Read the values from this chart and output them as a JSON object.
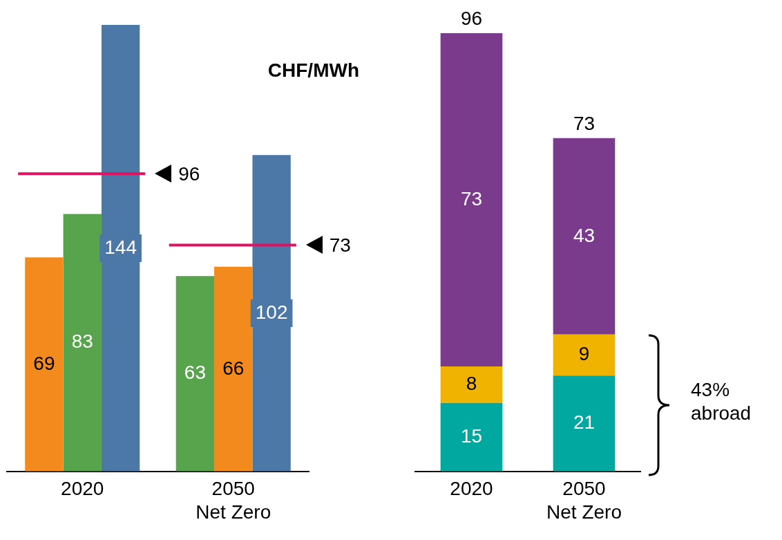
{
  "chart_data": [
    {
      "type": "bar",
      "categories": [
        "2020",
        "2050\nNet Zero"
      ],
      "series": [
        {
          "colors": [
            "#f28a1e",
            "#57a44c"
          ],
          "values": [
            69,
            63
          ]
        },
        {
          "colors": [
            "#57a44c",
            "#f28a1e"
          ],
          "values": [
            83,
            66
          ]
        },
        {
          "color": "#4c78a8",
          "values": [
            144,
            102
          ]
        }
      ],
      "ylim": [
        0,
        144
      ],
      "tick_labels": "x",
      "grid": false,
      "legend": false,
      "data_labels": true,
      "ref_lines": [
        {
          "axis": "y",
          "value": 96,
          "label": "96",
          "color": "#e0115f"
        },
        {
          "axis": "y",
          "value": 73,
          "label": "73",
          "color": "#e0115f"
        }
      ],
      "annotations": [
        "CHF/MWh"
      ]
    },
    {
      "type": "bar",
      "stacked": true,
      "categories": [
        "2020",
        "2050\nNet Zero"
      ],
      "series": [
        {
          "color": "#00a8a0",
          "values": [
            15,
            21
          ]
        },
        {
          "color": "#f0b400",
          "values": [
            8,
            9
          ]
        },
        {
          "color": "#7b3b8c",
          "values": [
            73,
            43
          ]
        }
      ],
      "ylim": [
        0,
        96
      ],
      "tick_labels": "x",
      "grid": false,
      "legend": false,
      "data_labels": true,
      "totals": [
        "96",
        "73"
      ],
      "annotations": [
        "43%\nabroad"
      ]
    }
  ]
}
